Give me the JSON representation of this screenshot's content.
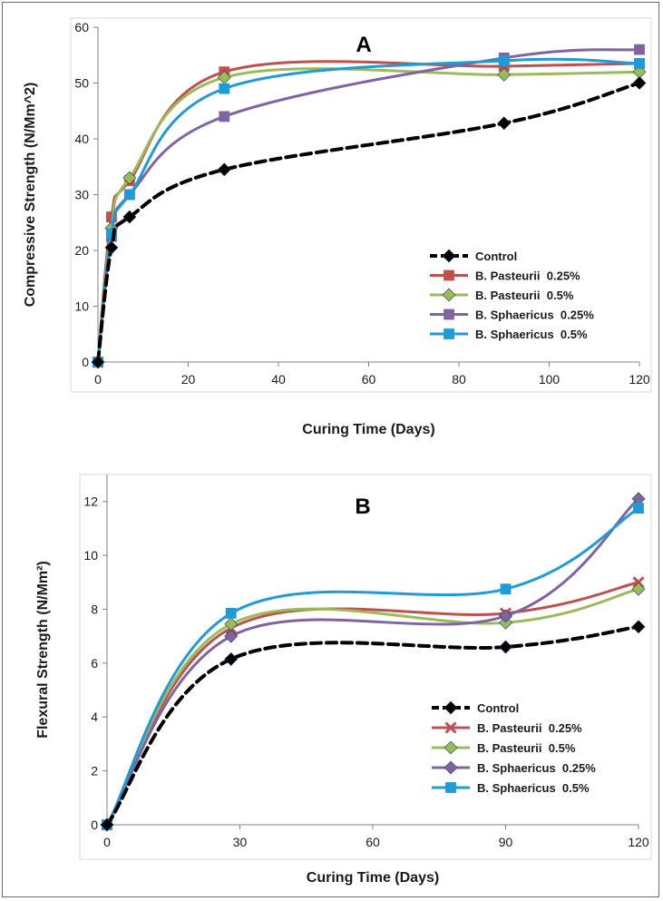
{
  "chart_data": [
    {
      "type": "line",
      "title": "A",
      "xlabel": "Curing Time (Days)",
      "ylabel": "Compressive Strength (N/Mm^2)",
      "xlim": [
        0,
        120
      ],
      "ylim": [
        0,
        60
      ],
      "xticks": [
        0,
        20,
        40,
        60,
        80,
        100,
        120
      ],
      "yticks": [
        0,
        10,
        20,
        30,
        40,
        50,
        60
      ],
      "legend_position": "bottom-right",
      "series": [
        {
          "name": "Control",
          "color": "#000000",
          "marker": "diamond",
          "dashed": true,
          "x": [
            0,
            3,
            7,
            28,
            90,
            120
          ],
          "values": [
            0,
            20.5,
            26,
            34.5,
            42.8,
            50
          ]
        },
        {
          "name": "B. Pasteurii  0.25%",
          "color": "#c0504d",
          "marker": "square",
          "dashed": false,
          "x": [
            0,
            3,
            7,
            28,
            90,
            120
          ],
          "values": [
            0,
            26,
            32.5,
            52,
            53,
            53.5
          ]
        },
        {
          "name": "B. Pasteurii  0.5%",
          "color": "#9bbb59",
          "marker": "diamond",
          "dashed": false,
          "x": [
            0,
            3,
            7,
            28,
            90,
            120
          ],
          "values": [
            0,
            24,
            33,
            51,
            51.5,
            52
          ]
        },
        {
          "name": "B. Sphaericus  0.25%",
          "color": "#8064a2",
          "marker": "square",
          "dashed": false,
          "x": [
            0,
            3,
            7,
            28,
            90,
            120
          ],
          "values": [
            0,
            22.5,
            30,
            44,
            54.5,
            56
          ]
        },
        {
          "name": "B. Sphaericus  0.5%",
          "color": "#1f9bd7",
          "marker": "square",
          "dashed": false,
          "x": [
            0,
            3,
            7,
            28,
            90,
            120
          ],
          "values": [
            0,
            23,
            30,
            49,
            54,
            53.5
          ]
        }
      ]
    },
    {
      "type": "line",
      "title": "B",
      "xlabel": "Curing Time (Days)",
      "ylabel": "Flexural Strength (N/Mm²)",
      "xlim": [
        0,
        120
      ],
      "ylim": [
        0,
        13
      ],
      "xticks": [
        0,
        30,
        60,
        90,
        120
      ],
      "yticks": [
        0,
        2,
        4,
        6,
        8,
        10,
        12
      ],
      "legend_position": "bottom-right",
      "series": [
        {
          "name": "Control",
          "color": "#000000",
          "marker": "diamond",
          "dashed": true,
          "x": [
            0,
            28,
            90,
            120
          ],
          "values": [
            0,
            6.15,
            6.6,
            7.35
          ]
        },
        {
          "name": "B. Pasteurii  0.25%",
          "color": "#c0504d",
          "marker": "x",
          "dashed": false,
          "x": [
            0,
            28,
            90,
            120
          ],
          "values": [
            0,
            7.3,
            7.85,
            9.0
          ]
        },
        {
          "name": "B. Pasteurii  0.5%",
          "color": "#9bbb59",
          "marker": "diamond",
          "dashed": false,
          "x": [
            0,
            28,
            90,
            120
          ],
          "values": [
            0,
            7.45,
            7.5,
            8.75
          ]
        },
        {
          "name": "B. Sphaericus  0.25%",
          "color": "#8064a2",
          "marker": "diamond",
          "dashed": false,
          "x": [
            0,
            28,
            90,
            120
          ],
          "values": [
            0,
            7.0,
            7.75,
            12.1
          ]
        },
        {
          "name": "B. Sphaericus  0.5%",
          "color": "#1f9bd7",
          "marker": "square",
          "dashed": false,
          "x": [
            0,
            28,
            90,
            120
          ],
          "values": [
            0,
            7.85,
            8.75,
            11.75
          ]
        }
      ]
    }
  ]
}
